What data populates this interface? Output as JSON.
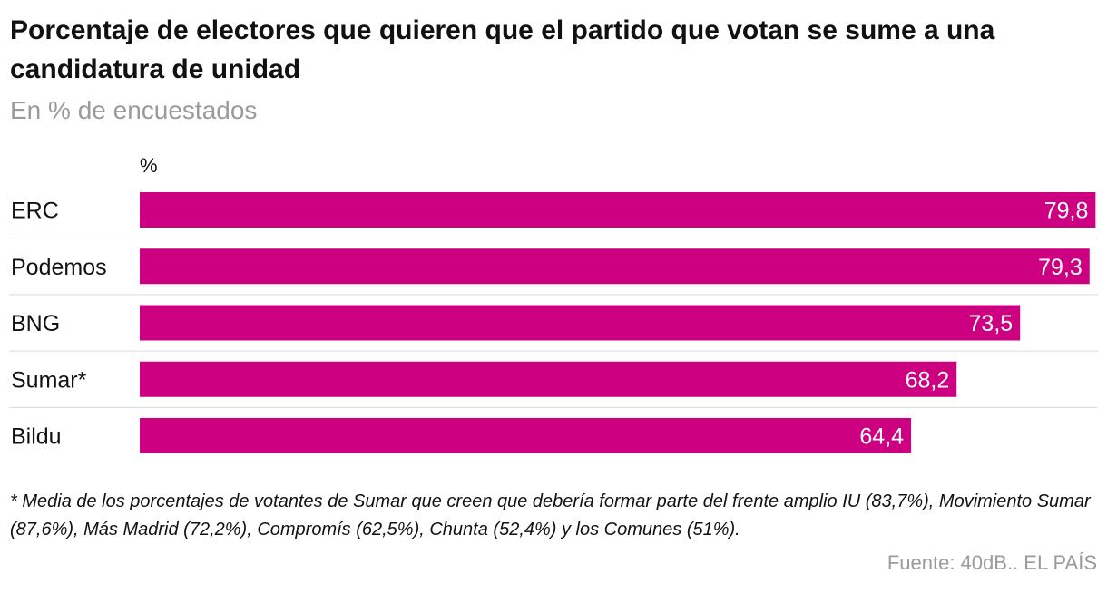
{
  "title": "Porcentaje de electores que quieren que el partido que votan se sume a una candidatura de unidad",
  "subtitle": "En % de encuestados",
  "unit_label": "%",
  "note": "* Media de los porcentajes de votantes de Sumar que creen que debería formar parte del frente amplio IU (83,7%), Movimiento Sumar (87,6%), Más Madrid (72,2%), Compromís (62,5%), Chunta (52,4%) y los Comunes (51%).",
  "source": "Fuente: 40dB.. EL PAÍS",
  "colors": {
    "bar": "#cc0080",
    "label_inside": "#ffffff",
    "category": "#111111",
    "separator": "#d9d9d9"
  },
  "chart_data": {
    "type": "bar",
    "orientation": "horizontal",
    "categories": [
      "ERC",
      "Podemos",
      "BNG",
      "Sumar*",
      "Bildu"
    ],
    "values": [
      79.8,
      79.3,
      73.5,
      68.2,
      64.4
    ],
    "value_labels": [
      "79,8",
      "79,3",
      "73,5",
      "68,2",
      "64,4"
    ],
    "xlim": [
      0,
      80
    ],
    "grid": false
  }
}
